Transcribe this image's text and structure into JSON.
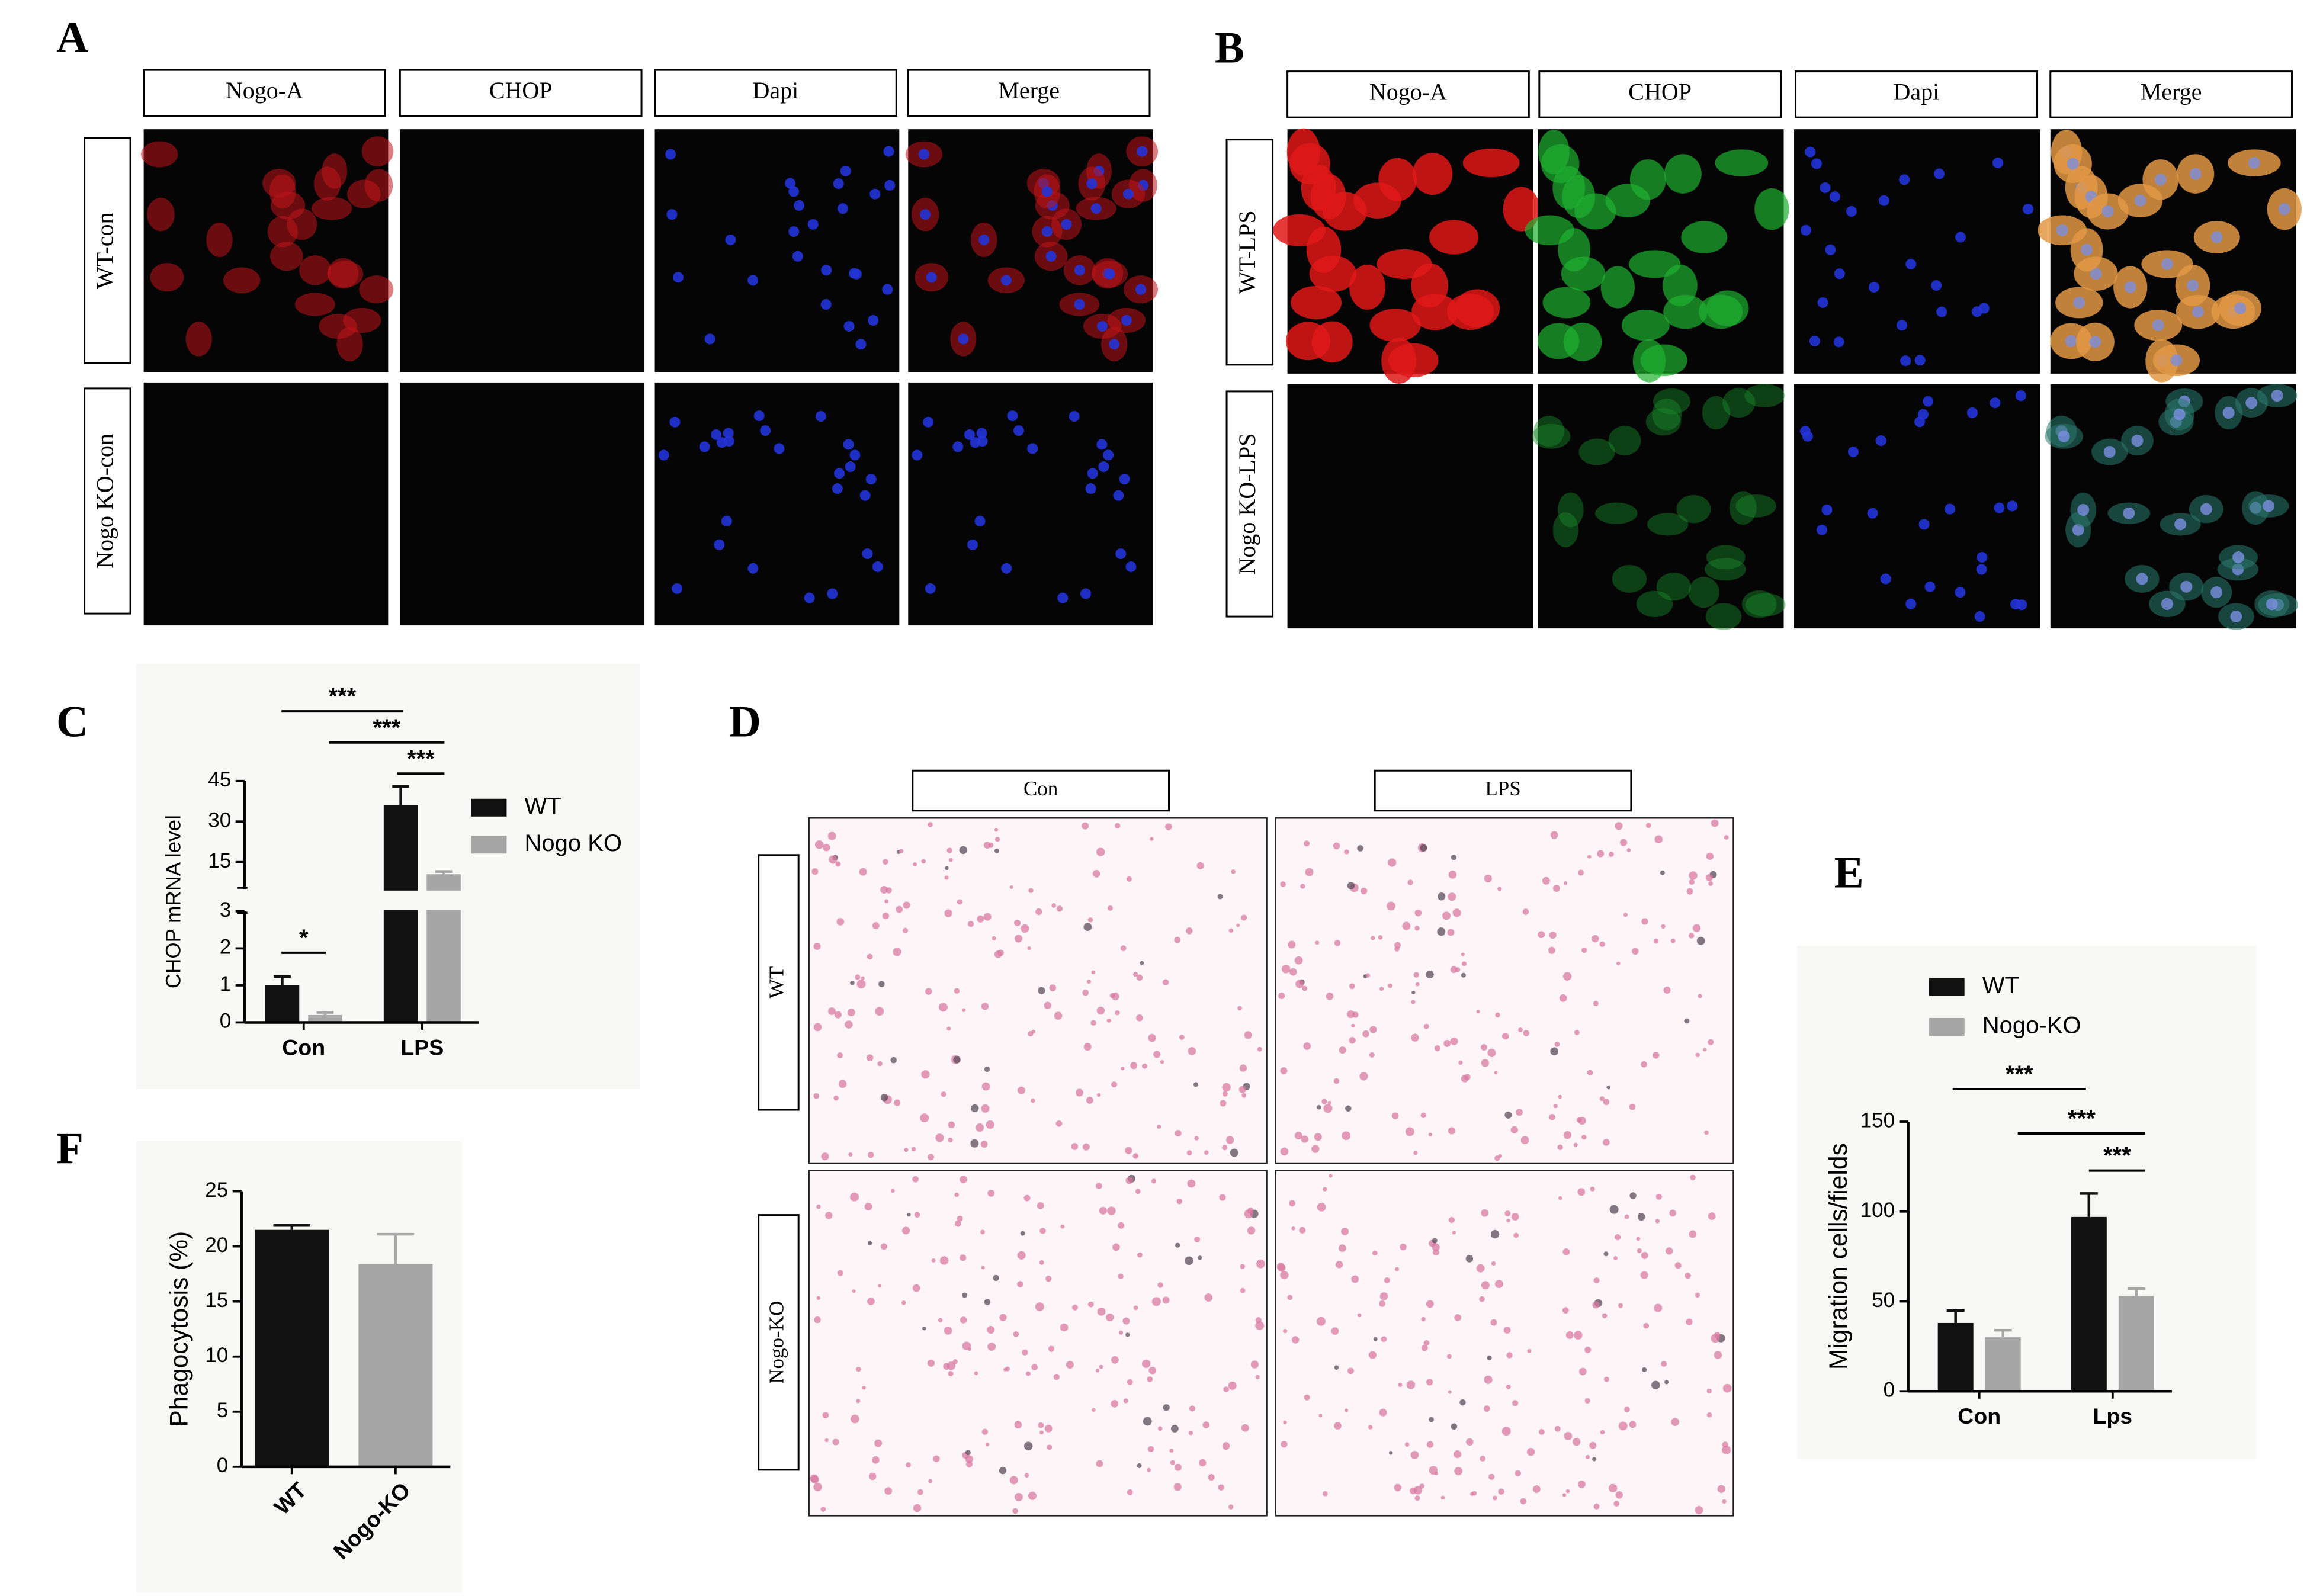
{
  "panel_labels": [
    "A",
    "B",
    "C",
    "D",
    "E",
    "F"
  ],
  "image_grids": [
    {
      "columns": [
        "Nogo-A",
        "CHOP",
        "Dapi",
        "Merge"
      ],
      "rows": [
        "WT-con",
        "Nogo KO-con"
      ]
    },
    {
      "columns": [
        "Nogo-A",
        "CHOP",
        "Dapi",
        "Merge"
      ],
      "rows": [
        "WT-LPS",
        "Nogo KO-LPS"
      ]
    },
    {
      "columns": [
        "Con",
        "LPS"
      ],
      "rows": [
        "WT",
        "Nogo-KO"
      ]
    }
  ],
  "chart_data": [
    {
      "type": "bar",
      "ylabel": "CHOP mRNA level",
      "categories": [
        "Con",
        "LPS"
      ],
      "series": [
        {
          "name": "WT",
          "color": "#111111",
          "values": [
            1.0,
            36
          ],
          "errors": [
            0.24,
            7
          ]
        },
        {
          "name": "Nogo KO",
          "color": "#a6a6a6",
          "values": [
            0.2,
            10.5
          ],
          "errors": [
            0.07,
            1
          ]
        }
      ],
      "ylim": [
        0,
        45
      ],
      "ybreak": [
        3,
        5
      ],
      "yticks": [
        0,
        1,
        2,
        3,
        15,
        30,
        45
      ],
      "annotations": [
        "***",
        "***",
        "***",
        "*"
      ],
      "legend": "right"
    },
    {
      "type": "bar",
      "ylabel": "Migration cells/fields",
      "categories": [
        "Con",
        "Lps"
      ],
      "series": [
        {
          "name": "WT",
          "color": "#111111",
          "values": [
            38,
            97
          ],
          "errors": [
            7,
            13
          ]
        },
        {
          "name": "Nogo-KO",
          "color": "#a6a6a6",
          "values": [
            30,
            53
          ],
          "errors": [
            4,
            4
          ]
        }
      ],
      "ylim": [
        0,
        150
      ],
      "yticks": [
        0,
        50,
        100,
        150
      ],
      "annotations": [
        "***",
        "***",
        "***"
      ],
      "legend": "top"
    },
    {
      "type": "bar",
      "ylabel": "Phagocytosis (%)",
      "categories": [
        "WT",
        "Nogo-KO"
      ],
      "values": [
        21.5,
        18.4
      ],
      "errors": [
        0.4,
        2.7
      ],
      "colors": [
        "#111111",
        "#a6a6a6"
      ],
      "ylim": [
        0,
        25
      ],
      "yticks": [
        0,
        5,
        10,
        15,
        20,
        25
      ]
    }
  ]
}
